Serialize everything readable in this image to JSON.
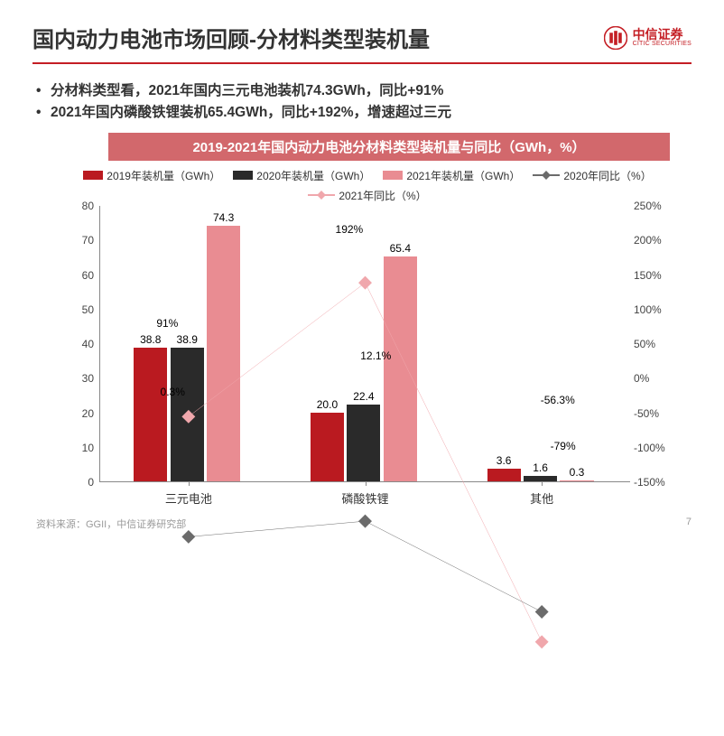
{
  "slide": {
    "title": "国内动力电池市场回顾-分材料类型装机量",
    "logo": {
      "cn": "中信证券",
      "en": "CITIC SECURITIES",
      "accent": "#c41e24"
    },
    "bullets": [
      "分材料类型看，2021年国内三元电池装机74.3GWh，同比+91%",
      "2021年国内磷酸铁锂装机65.4GWh，同比+192%，增速超过三元"
    ],
    "banner": "2019-2021年国内动力电池分材料类型装机量与同比（GWh，%）",
    "source": "资料来源：GGII，中信证券研究部",
    "page_number": "7"
  },
  "chart": {
    "type": "bar+line",
    "background_color": "#ffffff",
    "categories": [
      "三元电池",
      "磷酸铁锂",
      "其他"
    ],
    "bar_series": [
      {
        "name": "2019年装机量（GWh）",
        "color": "#ba1a20",
        "values": [
          38.8,
          20.0,
          3.6
        ]
      },
      {
        "name": "2020年装机量（GWh）",
        "color": "#2a2a2a",
        "values": [
          38.9,
          22.4,
          1.6
        ]
      },
      {
        "name": "2021年装机量（GWh）",
        "color": "#e98c92",
        "values": [
          74.3,
          65.4,
          0.3
        ]
      }
    ],
    "line_series": [
      {
        "name": "2020年同比（%）",
        "color": "#6b6b6b",
        "marker": "diamond",
        "values": [
          0.3,
          12.1,
          -56.3
        ],
        "labels": [
          "0.3%",
          "12.1%",
          "-56.3%"
        ]
      },
      {
        "name": "2021年同比（%）",
        "color": "#f0a7ac",
        "marker": "diamond",
        "values": [
          91,
          192,
          -79
        ],
        "labels": [
          "91%",
          "192%",
          "-79%"
        ]
      }
    ],
    "y_left": {
      "min": 0,
      "max": 80,
      "step": 10
    },
    "y_right": {
      "min": -150,
      "max": 250,
      "step": 50,
      "suffix": "%"
    },
    "bar_group_width": 0.62,
    "label_fontsize": 12,
    "axis_color": "#888888"
  }
}
